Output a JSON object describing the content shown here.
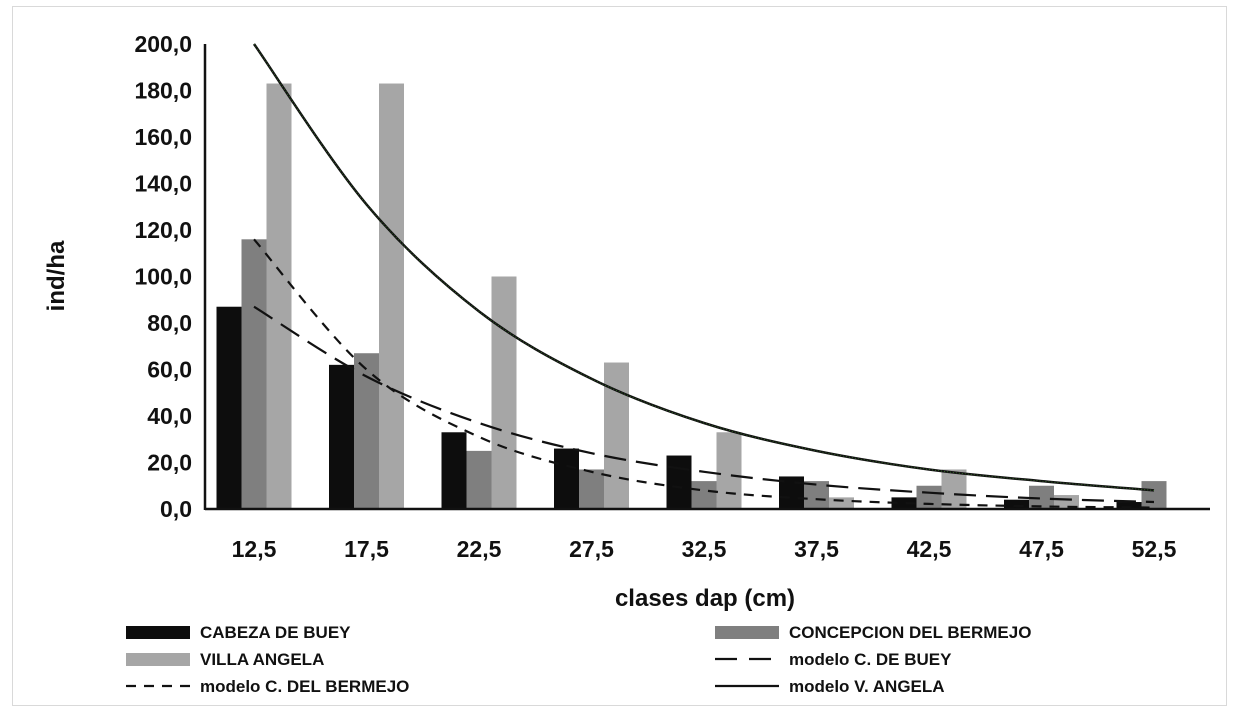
{
  "chart_data": {
    "type": "bar",
    "title": "",
    "xlabel": "clases dap (cm)",
    "ylabel": "ind/ha",
    "ylim": [
      0,
      200
    ],
    "yticks": [
      "0,0",
      "20,0",
      "40,0",
      "60,0",
      "80,0",
      "100,0",
      "120,0",
      "140,0",
      "160,0",
      "180,0",
      "200,0"
    ],
    "categories": [
      "12,5",
      "17,5",
      "22,5",
      "27,5",
      "32,5",
      "37,5",
      "42,5",
      "47,5",
      "52,5"
    ],
    "series": [
      {
        "name": "CABEZA DE BUEY",
        "color": "#0d0d0d",
        "values": [
          87,
          62,
          33,
          26,
          23,
          14,
          5,
          4,
          3
        ]
      },
      {
        "name": "CONCEPCION DEL BERMEJO",
        "color": "#7f7f7f",
        "values": [
          116,
          67,
          25,
          17,
          12,
          12,
          10,
          10,
          12
        ]
      },
      {
        "name": "VILLA ANGELA",
        "color": "#a6a6a6",
        "values": [
          183,
          183,
          100,
          63,
          33,
          5,
          17,
          6,
          0
        ]
      }
    ],
    "models": [
      {
        "name": "modelo C. DE BUEY",
        "style": "long-dash",
        "x": [
          12.5,
          17.5,
          22.5,
          27.5,
          32.5,
          37.5,
          42.5,
          47.5,
          52.5
        ],
        "y": [
          87,
          57,
          37,
          24,
          16,
          10.5,
          7,
          4.5,
          3
        ]
      },
      {
        "name": "modelo C. DEL BERMEJO",
        "style": "short-dash",
        "x": [
          12.5,
          17.5,
          22.5,
          27.5,
          32.5,
          37.5,
          42.5,
          47.5,
          52.5
        ],
        "y": [
          116,
          60,
          31,
          16,
          8,
          4.2,
          2.2,
          1.1,
          0.6
        ]
      },
      {
        "name": "modelo V. ANGELA",
        "style": "solid",
        "x": [
          12.5,
          17.5,
          22.5,
          27.5,
          32.5,
          37.5,
          42.5,
          47.5,
          52.5
        ],
        "y": [
          200,
          131,
          85,
          56,
          37,
          25,
          17,
          12,
          8
        ]
      }
    ],
    "legend_position": "bottom",
    "grid": false
  }
}
